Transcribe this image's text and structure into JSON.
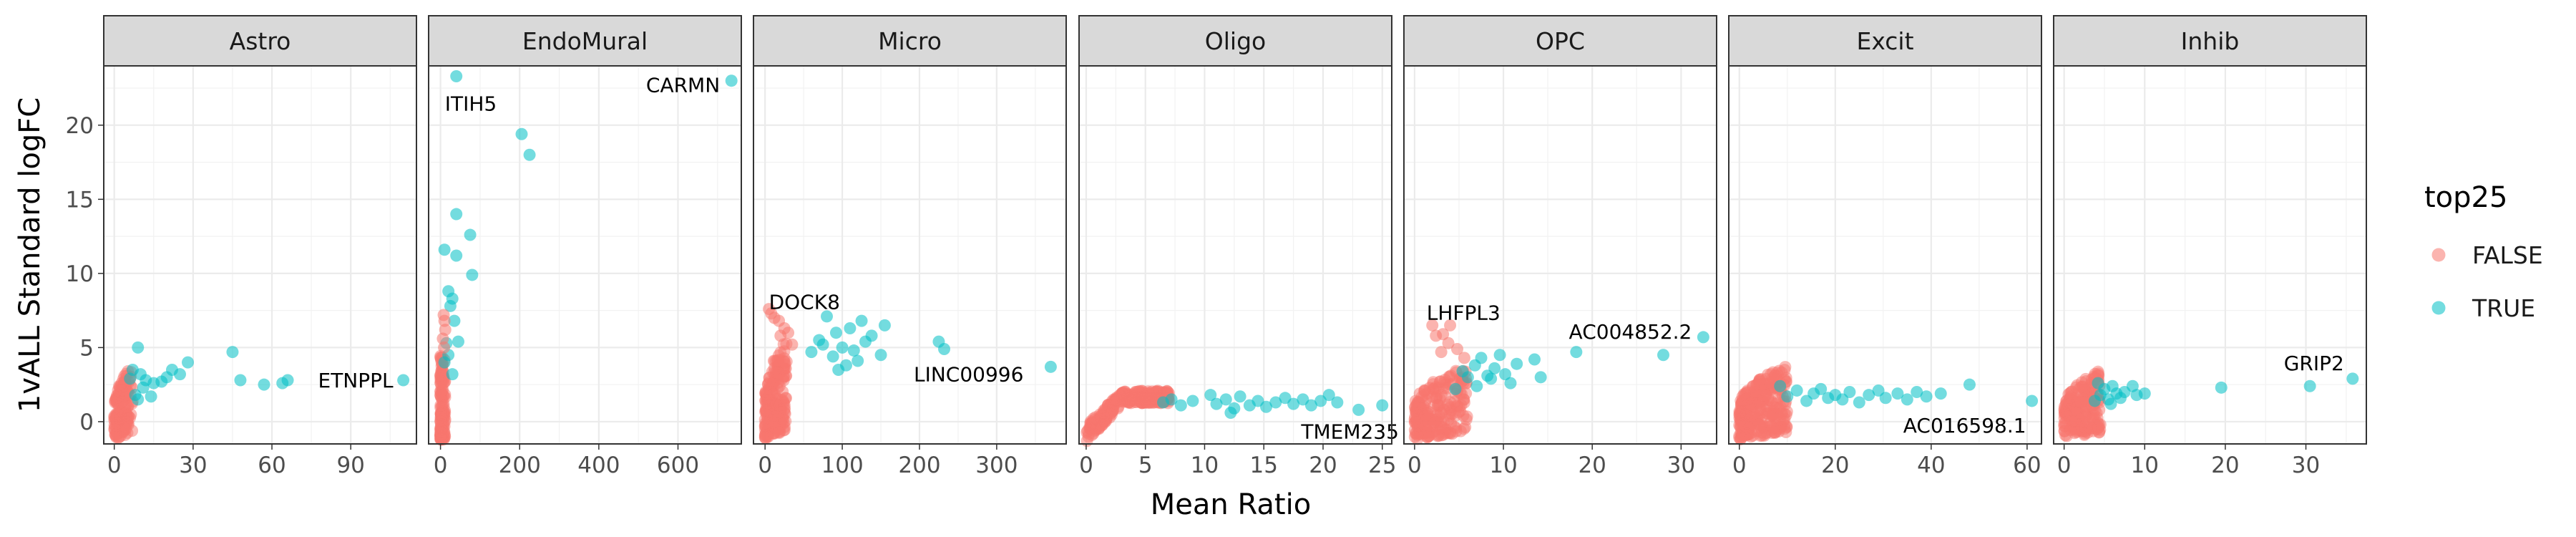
{
  "chart_data": {
    "type": "scatter",
    "facet_variable": "cell type",
    "xlabel": "Mean Ratio",
    "ylabel": "1vALL Standard logFC",
    "ylim": [
      -1.5,
      24
    ],
    "yticks": [
      0,
      5,
      10,
      15,
      20
    ],
    "legend": {
      "title": "top25",
      "placement": "right",
      "entries": [
        {
          "label": "FALSE",
          "color": "#F8766D"
        },
        {
          "label": "TRUE",
          "color": "#00BFC4"
        }
      ]
    },
    "colors": {
      "FALSE": "#F8766D",
      "TRUE": "#00BFC4"
    },
    "panels": [
      {
        "title": "Astro",
        "xlim": [
          -4,
          115
        ],
        "xticks": [
          0,
          30,
          60,
          90
        ],
        "points": [
          {
            "x": 9,
            "y": 5.0,
            "top": true
          },
          {
            "x": 7,
            "y": 3.5,
            "top": true
          },
          {
            "x": 10,
            "y": 3.2,
            "top": true
          },
          {
            "x": 12,
            "y": 2.8,
            "top": true
          },
          {
            "x": 15,
            "y": 2.6,
            "top": true
          },
          {
            "x": 18,
            "y": 2.7,
            "top": true
          },
          {
            "x": 20,
            "y": 3.0,
            "top": true
          },
          {
            "x": 22,
            "y": 3.5,
            "top": true
          },
          {
            "x": 25,
            "y": 3.2,
            "top": true
          },
          {
            "x": 28,
            "y": 4.0,
            "top": true
          },
          {
            "x": 8,
            "y": 1.8,
            "top": true
          },
          {
            "x": 11,
            "y": 2.3,
            "top": true
          },
          {
            "x": 14,
            "y": 1.7,
            "top": true
          },
          {
            "x": 6,
            "y": 2.9,
            "top": true
          },
          {
            "x": 9,
            "y": 1.5,
            "top": true
          },
          {
            "x": 45,
            "y": 4.7,
            "top": true
          },
          {
            "x": 48,
            "y": 2.8,
            "top": true
          },
          {
            "x": 57,
            "y": 2.5,
            "top": true
          },
          {
            "x": 64,
            "y": 2.6,
            "top": true
          },
          {
            "x": 66,
            "y": 2.8,
            "top": true
          },
          {
            "x": 110,
            "y": 2.8,
            "top": true
          }
        ],
        "labels": [
          {
            "text": "ETNPPL",
            "x": 110,
            "y": 2.8,
            "anchor": "end",
            "dx": -14,
            "dy": 0
          }
        ],
        "cloud": {
          "xmax": 7,
          "ylo": -1.2,
          "yhi": 3.8,
          "n": 140,
          "shape": "rise"
        }
      },
      {
        "title": "EndoMural",
        "xlim": [
          -30,
          760
        ],
        "xticks": [
          0,
          200,
          400,
          600
        ],
        "points": [
          {
            "x": 40,
            "y": 23.3,
            "top": true
          },
          {
            "x": 735,
            "y": 23.0,
            "top": true
          },
          {
            "x": 205,
            "y": 19.4,
            "top": true
          },
          {
            "x": 225,
            "y": 18.0,
            "top": true
          },
          {
            "x": 40,
            "y": 14.0,
            "top": true
          },
          {
            "x": 75,
            "y": 12.6,
            "top": true
          },
          {
            "x": 10,
            "y": 11.6,
            "top": true
          },
          {
            "x": 40,
            "y": 11.2,
            "top": true
          },
          {
            "x": 80,
            "y": 9.9,
            "top": true
          },
          {
            "x": 20,
            "y": 8.8,
            "top": true
          },
          {
            "x": 30,
            "y": 8.3,
            "top": true
          },
          {
            "x": 25,
            "y": 7.8,
            "top": true
          },
          {
            "x": 35,
            "y": 6.8,
            "top": true
          },
          {
            "x": 15,
            "y": 5.3,
            "top": true
          },
          {
            "x": 45,
            "y": 5.4,
            "top": true
          },
          {
            "x": 20,
            "y": 4.5,
            "top": true
          },
          {
            "x": 10,
            "y": 4.0,
            "top": true
          },
          {
            "x": 30,
            "y": 3.2,
            "top": true
          },
          {
            "x": 8,
            "y": 7.2,
            "top": false
          },
          {
            "x": 10,
            "y": 6.8,
            "top": false
          },
          {
            "x": 12,
            "y": 6.2,
            "top": false
          },
          {
            "x": 6,
            "y": 5.6,
            "top": false
          },
          {
            "x": 9,
            "y": 5.0,
            "top": false
          }
        ],
        "labels": [
          {
            "text": "ITIH5",
            "x": 40,
            "y": 23.3,
            "anchor": "start",
            "dx": -16,
            "dy": 38
          },
          {
            "text": "CARMN",
            "x": 735,
            "y": 23.0,
            "anchor": "end",
            "dx": -16,
            "dy": 6
          }
        ],
        "cloud": {
          "xmax": 12,
          "ylo": -1.2,
          "yhi": 4.5,
          "n": 130,
          "shape": "column"
        }
      },
      {
        "title": "Micro",
        "xlim": [
          -15,
          390
        ],
        "xticks": [
          0,
          100,
          200,
          300,
          400
        ],
        "points": [
          {
            "x": 80,
            "y": 7.1,
            "top": true
          },
          {
            "x": 92,
            "y": 6.0,
            "top": true
          },
          {
            "x": 110,
            "y": 6.3,
            "top": true
          },
          {
            "x": 125,
            "y": 6.8,
            "top": true
          },
          {
            "x": 138,
            "y": 5.8,
            "top": true
          },
          {
            "x": 155,
            "y": 6.5,
            "top": true
          },
          {
            "x": 70,
            "y": 5.5,
            "top": true
          },
          {
            "x": 75,
            "y": 5.2,
            "top": true
          },
          {
            "x": 100,
            "y": 5.0,
            "top": true
          },
          {
            "x": 115,
            "y": 4.8,
            "top": true
          },
          {
            "x": 120,
            "y": 4.1,
            "top": true
          },
          {
            "x": 130,
            "y": 5.4,
            "top": true
          },
          {
            "x": 150,
            "y": 4.5,
            "top": true
          },
          {
            "x": 105,
            "y": 3.8,
            "top": true
          },
          {
            "x": 88,
            "y": 4.4,
            "top": true
          },
          {
            "x": 60,
            "y": 4.7,
            "top": true
          },
          {
            "x": 95,
            "y": 3.5,
            "top": true
          },
          {
            "x": 225,
            "y": 5.4,
            "top": true
          },
          {
            "x": 232,
            "y": 4.9,
            "top": true
          },
          {
            "x": 370,
            "y": 3.7,
            "top": true
          },
          {
            "x": 5,
            "y": 7.6,
            "top": false
          },
          {
            "x": 8,
            "y": 7.3,
            "top": false
          },
          {
            "x": 12,
            "y": 7.0,
            "top": false
          },
          {
            "x": 18,
            "y": 6.8,
            "top": false
          },
          {
            "x": 25,
            "y": 6.3,
            "top": false
          },
          {
            "x": 30,
            "y": 6.0,
            "top": false
          },
          {
            "x": 20,
            "y": 5.8,
            "top": false
          },
          {
            "x": 35,
            "y": 5.2,
            "top": false
          }
        ],
        "labels": [
          {
            "text": "DOCK8",
            "x": 5,
            "y": 7.6,
            "anchor": "start",
            "dx": 0,
            "dy": -10
          },
          {
            "text": "LINC00996",
            "x": 370,
            "y": 3.7,
            "anchor": "end",
            "dx": -38,
            "dy": 10
          }
        ],
        "cloud": {
          "xmax": 28,
          "ylo": -1.2,
          "yhi": 5.5,
          "n": 180,
          "shape": "rise"
        }
      },
      {
        "title": "Oligo",
        "xlim": [
          -0.6,
          25.8
        ],
        "xticks": [
          0,
          5,
          10,
          15,
          20,
          25
        ],
        "points": [
          {
            "x": 6.5,
            "y": 1.3,
            "top": true
          },
          {
            "x": 7.2,
            "y": 1.5,
            "top": true
          },
          {
            "x": 8.0,
            "y": 1.1,
            "top": true
          },
          {
            "x": 9.0,
            "y": 1.4,
            "top": true
          },
          {
            "x": 10.5,
            "y": 1.8,
            "top": true
          },
          {
            "x": 11.0,
            "y": 1.2,
            "top": true
          },
          {
            "x": 11.8,
            "y": 1.5,
            "top": true
          },
          {
            "x": 12.5,
            "y": 0.9,
            "top": true
          },
          {
            "x": 13.0,
            "y": 1.7,
            "top": true
          },
          {
            "x": 13.8,
            "y": 1.1,
            "top": true
          },
          {
            "x": 14.5,
            "y": 1.4,
            "top": true
          },
          {
            "x": 15.2,
            "y": 1.0,
            "top": true
          },
          {
            "x": 16.0,
            "y": 1.3,
            "top": true
          },
          {
            "x": 16.8,
            "y": 1.6,
            "top": true
          },
          {
            "x": 17.5,
            "y": 1.2,
            "top": true
          },
          {
            "x": 18.3,
            "y": 1.5,
            "top": true
          },
          {
            "x": 19.0,
            "y": 1.1,
            "top": true
          },
          {
            "x": 19.8,
            "y": 1.4,
            "top": true
          },
          {
            "x": 20.5,
            "y": 1.8,
            "top": true
          },
          {
            "x": 21.2,
            "y": 1.3,
            "top": true
          },
          {
            "x": 23.0,
            "y": 0.8,
            "top": true
          },
          {
            "x": 25.0,
            "y": 1.1,
            "top": true
          },
          {
            "x": 12.2,
            "y": 0.6,
            "top": true
          }
        ],
        "labels": [
          {
            "text": "TMEM235",
            "x": 23.0,
            "y": 0.8,
            "anchor": "middle",
            "dx": -12,
            "dy": 30
          }
        ],
        "cloud": {
          "xmax": 7,
          "ylo": -1.3,
          "yhi": 2.2,
          "n": 320,
          "shape": "arc"
        }
      },
      {
        "title": "OPC",
        "xlim": [
          -1.2,
          34
        ],
        "xticks": [
          0,
          10,
          20,
          30
        ],
        "points": [
          {
            "x": 6.0,
            "y": 3.0,
            "top": true
          },
          {
            "x": 6.8,
            "y": 3.8,
            "top": true
          },
          {
            "x": 7.5,
            "y": 4.3,
            "top": true
          },
          {
            "x": 8.2,
            "y": 3.1,
            "top": true
          },
          {
            "x": 9.0,
            "y": 3.6,
            "top": true
          },
          {
            "x": 9.6,
            "y": 4.5,
            "top": true
          },
          {
            "x": 10.2,
            "y": 3.2,
            "top": true
          },
          {
            "x": 10.8,
            "y": 2.6,
            "top": true
          },
          {
            "x": 11.5,
            "y": 3.9,
            "top": true
          },
          {
            "x": 7.0,
            "y": 2.4,
            "top": true
          },
          {
            "x": 8.6,
            "y": 2.9,
            "top": true
          },
          {
            "x": 5.4,
            "y": 3.4,
            "top": true
          },
          {
            "x": 13.5,
            "y": 4.2,
            "top": true
          },
          {
            "x": 14.2,
            "y": 3.0,
            "top": true
          },
          {
            "x": 18.2,
            "y": 4.7,
            "top": true
          },
          {
            "x": 28.0,
            "y": 4.5,
            "top": true
          },
          {
            "x": 32.5,
            "y": 5.7,
            "top": true
          },
          {
            "x": 4.6,
            "y": 2.2,
            "top": true
          },
          {
            "x": 2.0,
            "y": 6.5,
            "top": false
          },
          {
            "x": 2.4,
            "y": 5.8,
            "top": false
          },
          {
            "x": 3.2,
            "y": 5.9,
            "top": false
          },
          {
            "x": 4.0,
            "y": 6.5,
            "top": false
          },
          {
            "x": 3.8,
            "y": 5.3,
            "top": false
          },
          {
            "x": 4.8,
            "y": 4.9,
            "top": false
          },
          {
            "x": 5.6,
            "y": 4.3,
            "top": false
          },
          {
            "x": 3.0,
            "y": 4.7,
            "top": false
          }
        ],
        "labels": [
          {
            "text": "LHFPL3",
            "x": 2.0,
            "y": 6.5,
            "anchor": "start",
            "dx": -8,
            "dy": -18
          },
          {
            "text": "AC004852.2",
            "x": 32.5,
            "y": 5.7,
            "anchor": "end",
            "dx": -16,
            "dy": -8
          }
        ],
        "cloud": {
          "xmax": 6,
          "ylo": -1.2,
          "yhi": 3.8,
          "n": 200,
          "shape": "rise"
        }
      },
      {
        "title": "Excit",
        "xlim": [
          -2.2,
          63
        ],
        "xticks": [
          0,
          20,
          40,
          60
        ],
        "points": [
          {
            "x": 10,
            "y": 1.7,
            "top": true
          },
          {
            "x": 12,
            "y": 2.1,
            "top": true
          },
          {
            "x": 14,
            "y": 1.4,
            "top": true
          },
          {
            "x": 15.5,
            "y": 1.9,
            "top": true
          },
          {
            "x": 17,
            "y": 2.2,
            "top": true
          },
          {
            "x": 18.5,
            "y": 1.6,
            "top": true
          },
          {
            "x": 20,
            "y": 1.8,
            "top": true
          },
          {
            "x": 21.5,
            "y": 1.5,
            "top": true
          },
          {
            "x": 23,
            "y": 2.0,
            "top": true
          },
          {
            "x": 25,
            "y": 1.3,
            "top": true
          },
          {
            "x": 27,
            "y": 1.8,
            "top": true
          },
          {
            "x": 29,
            "y": 2.1,
            "top": true
          },
          {
            "x": 30.5,
            "y": 1.6,
            "top": true
          },
          {
            "x": 33,
            "y": 1.9,
            "top": true
          },
          {
            "x": 35,
            "y": 1.5,
            "top": true
          },
          {
            "x": 37,
            "y": 2.0,
            "top": true
          },
          {
            "x": 39,
            "y": 1.7,
            "top": true
          },
          {
            "x": 42,
            "y": 1.9,
            "top": true
          },
          {
            "x": 48,
            "y": 2.5,
            "top": true
          },
          {
            "x": 61,
            "y": 1.4,
            "top": true
          },
          {
            "x": 8.5,
            "y": 2.4,
            "top": true
          }
        ],
        "labels": [
          {
            "text": "AC016598.1",
            "x": 61,
            "y": 1.4,
            "anchor": "end",
            "dx": -8,
            "dy": 34
          }
        ],
        "cloud": {
          "xmax": 10,
          "ylo": -1.2,
          "yhi": 3.8,
          "n": 250,
          "shape": "rise"
        }
      },
      {
        "title": "Inhib",
        "xlim": [
          -1.3,
          37.5
        ],
        "xticks": [
          0,
          10,
          20,
          30
        ],
        "points": [
          {
            "x": 4.5,
            "y": 1.8,
            "top": true
          },
          {
            "x": 5.0,
            "y": 2.2,
            "top": true
          },
          {
            "x": 5.5,
            "y": 1.5,
            "top": true
          },
          {
            "x": 6.0,
            "y": 2.4,
            "top": true
          },
          {
            "x": 6.5,
            "y": 1.9,
            "top": true
          },
          {
            "x": 7.0,
            "y": 1.6,
            "top": true
          },
          {
            "x": 7.5,
            "y": 2.0,
            "top": true
          },
          {
            "x": 8.5,
            "y": 2.4,
            "top": true
          },
          {
            "x": 9.0,
            "y": 1.8,
            "top": true
          },
          {
            "x": 10.0,
            "y": 1.9,
            "top": true
          },
          {
            "x": 5.8,
            "y": 1.2,
            "top": true
          },
          {
            "x": 4.2,
            "y": 2.6,
            "top": true
          },
          {
            "x": 3.8,
            "y": 1.4,
            "top": true
          },
          {
            "x": 19.5,
            "y": 2.3,
            "top": true
          },
          {
            "x": 30.5,
            "y": 2.4,
            "top": true
          },
          {
            "x": 35.8,
            "y": 2.9,
            "top": true
          }
        ],
        "labels": [
          {
            "text": "GRIP2",
            "x": 35.8,
            "y": 2.9,
            "anchor": "end",
            "dx": -12,
            "dy": -22
          }
        ],
        "cloud": {
          "xmax": 4.5,
          "ylo": -1.2,
          "yhi": 3.6,
          "n": 180,
          "shape": "rise"
        }
      }
    ]
  }
}
